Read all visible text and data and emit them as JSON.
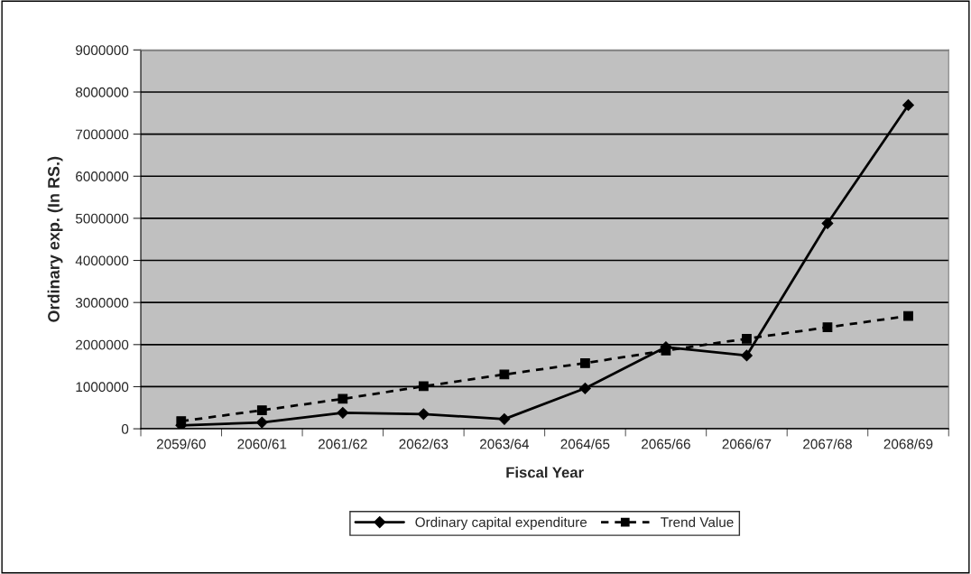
{
  "chart_data": {
    "type": "line",
    "xlabel": "Fiscal Year",
    "ylabel": "Ordinary exp. (In RS.)",
    "categories": [
      "2059/60",
      "2060/61",
      "2061/62",
      "2062/63",
      "2063/64",
      "2064/65",
      "2065/66",
      "2066/67",
      "2067/68",
      "2068/69"
    ],
    "series": [
      {
        "name": "Ordinary capital expenditure",
        "color": "#000000",
        "marker": "diamond",
        "line_style": "solid",
        "values": [
          80000,
          150000,
          380000,
          350000,
          230000,
          960000,
          1940000,
          1740000,
          4880000,
          7690000
        ]
      },
      {
        "name": "Trend Value",
        "color": "#000000",
        "marker": "square",
        "line_style": "dashed",
        "values": [
          180000,
          440000,
          710000,
          1010000,
          1290000,
          1560000,
          1860000,
          2140000,
          2410000,
          2680000
        ]
      }
    ],
    "ylim": [
      0,
      9000000
    ],
    "yticks": [
      0,
      1000000,
      2000000,
      3000000,
      4000000,
      5000000,
      6000000,
      7000000,
      8000000,
      9000000
    ],
    "grid": "y",
    "legend": "bottom"
  }
}
